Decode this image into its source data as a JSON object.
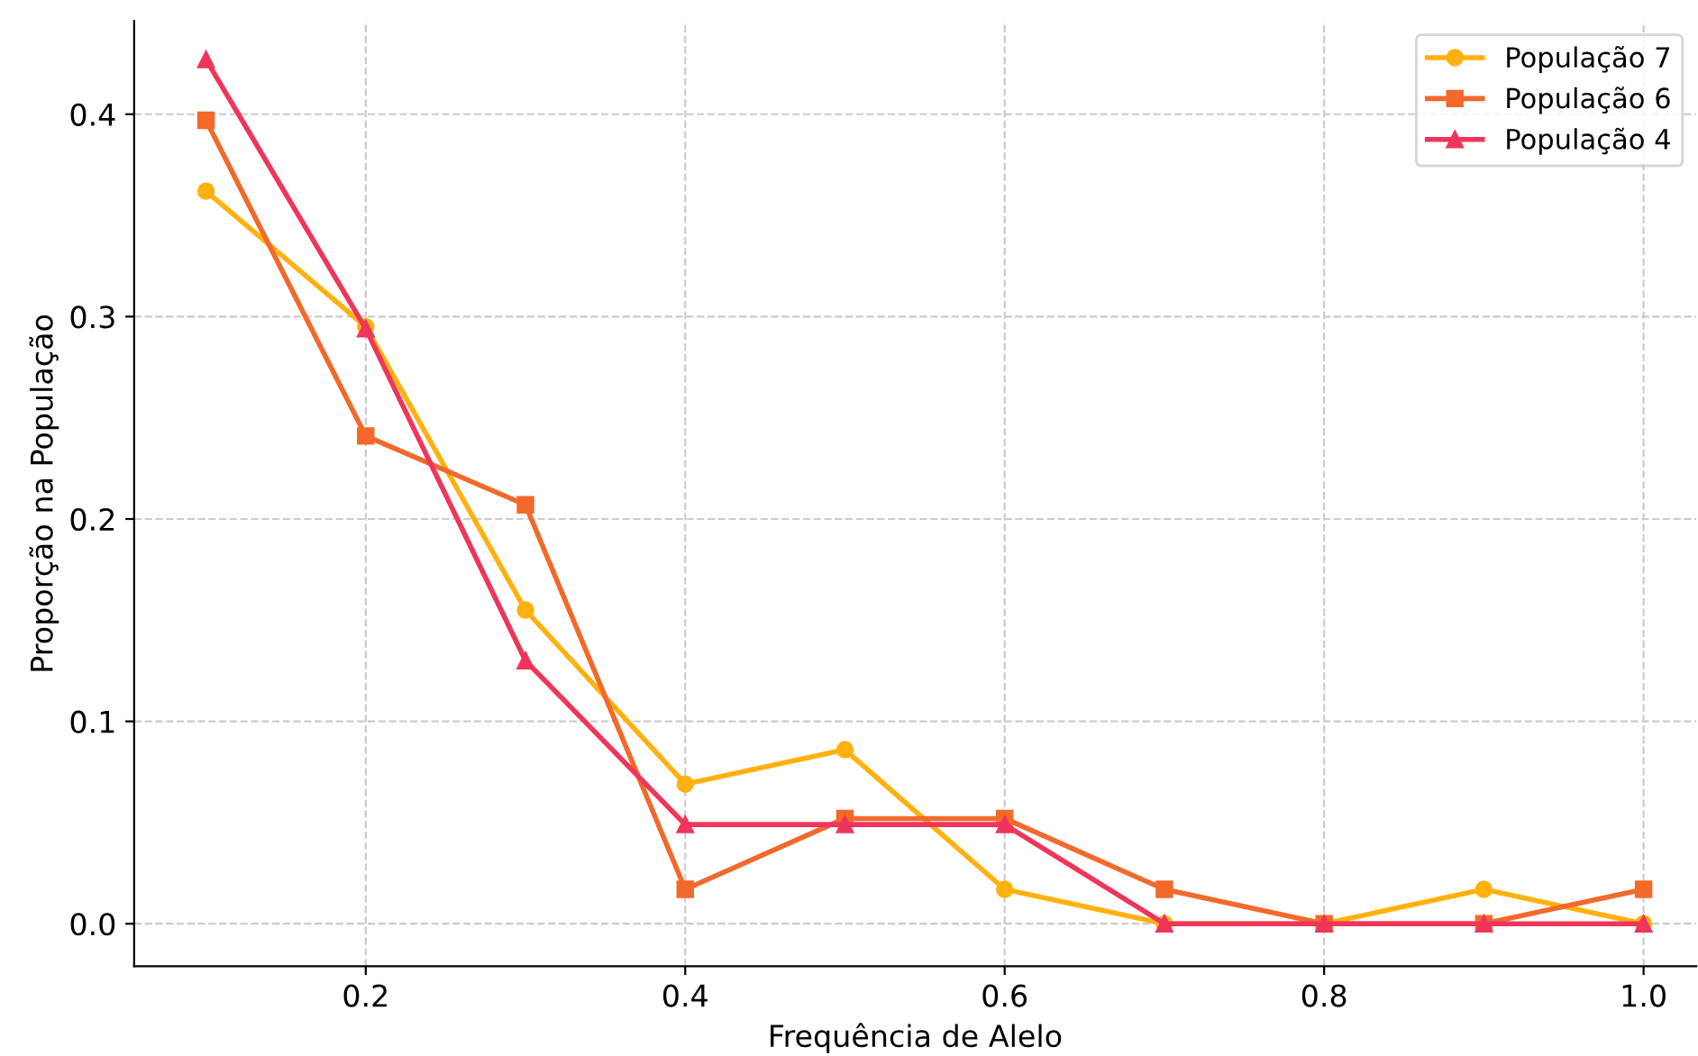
{
  "chart_data": {
    "type": "line",
    "xlabel": "Frequência de Alelo",
    "ylabel": "Proporção na População",
    "x": [
      0.1,
      0.2,
      0.3,
      0.4,
      0.5,
      0.6,
      0.7,
      0.8,
      0.9,
      1.0
    ],
    "series": [
      {
        "name": "População 7",
        "color": "#ffb10f",
        "marker": "circle",
        "values": [
          0.362,
          0.295,
          0.155,
          0.069,
          0.086,
          0.017,
          0.0,
          0.0,
          0.017,
          0.0
        ]
      },
      {
        "name": "População 6",
        "color": "#f2692a",
        "marker": "square",
        "values": [
          0.397,
          0.241,
          0.207,
          0.017,
          0.052,
          0.052,
          0.017,
          0.0,
          0.0,
          0.017
        ]
      },
      {
        "name": "População 4",
        "color": "#f0355a",
        "marker": "triangle",
        "values": [
          0.427,
          0.294,
          0.13,
          0.049,
          0.049,
          0.049,
          0.0,
          0.0,
          0.0,
          0.0
        ]
      }
    ],
    "xlim": [
      0.055,
      1.033
    ],
    "ylim": [
      -0.021,
      0.446
    ],
    "xticks": [
      {
        "value": 0.2,
        "label": "0.2"
      },
      {
        "value": 0.4,
        "label": "0.4"
      },
      {
        "value": 0.6,
        "label": "0.6"
      },
      {
        "value": 0.8,
        "label": "0.8"
      },
      {
        "value": 1.0,
        "label": "1.0"
      }
    ],
    "yticks": [
      {
        "value": 0.0,
        "label": "0.0"
      },
      {
        "value": 0.1,
        "label": "0.1"
      },
      {
        "value": 0.2,
        "label": "0.2"
      },
      {
        "value": 0.3,
        "label": "0.3"
      },
      {
        "value": 0.4,
        "label": "0.4"
      }
    ],
    "grid": true,
    "legend": "top right",
    "line_style": "solid"
  }
}
